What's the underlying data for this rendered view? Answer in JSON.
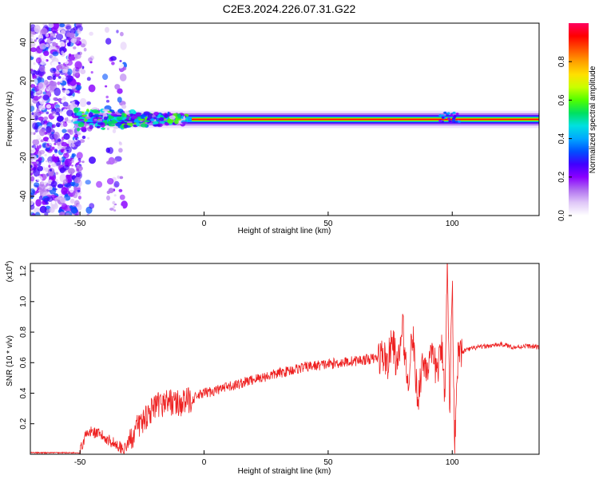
{
  "title": "C2E3.2024.226.07.31.G22",
  "chart_data": [
    {
      "type": "heatmap",
      "xlabel": "Height of straight line (km)",
      "ylabel": "Frequency (Hz)",
      "xlim": [
        -70,
        135
      ],
      "ylim": [
        -50,
        50
      ],
      "xticks": [
        "-50",
        "0",
        "50",
        "100"
      ],
      "yticks": [
        "-40",
        "-20",
        "0",
        "20",
        "40"
      ],
      "colorbar": {
        "label": "Normalized spectral amplitude",
        "range": [
          0.0,
          1.0
        ],
        "ticks": [
          "0.0",
          "0.2",
          "0.4",
          "0.6",
          "0.8"
        ],
        "colors": [
          "#ffffff",
          "#e0c8f8",
          "#b070f0",
          "#8a00ff",
          "#4000ff",
          "#0050ff",
          "#00a8ff",
          "#00e0e0",
          "#00e060",
          "#50ff00",
          "#c8ff00",
          "#ffe000",
          "#ffa000",
          "#ff5000",
          "#ff0000",
          "#ff0060"
        ]
      },
      "noise_region_x": [
        -70,
        -32
      ],
      "signal_band": {
        "start_x": -52,
        "center_freq": 0,
        "description_points_x": [
          -52,
          -30,
          -10,
          0,
          50,
          100,
          135
        ]
      }
    },
    {
      "type": "line",
      "xlabel": "Height of straight line (km)",
      "ylabel": "SNR (10 * v/v)",
      "y_multiplier": "(x10",
      "y_multiplier_exp": "4",
      "y_multiplier_close": ")",
      "xlim": [
        -70,
        135
      ],
      "ylim": [
        0,
        1.25
      ],
      "xticks": [
        "-50",
        "0",
        "50",
        "100"
      ],
      "yticks": [
        "0.2",
        "0.4",
        "0.6",
        "0.8",
        "1.0",
        "1.2"
      ],
      "series_color": "#ee2020",
      "x": [
        -70,
        -50,
        -48,
        -45,
        -40,
        -35,
        -32,
        -28,
        -22,
        -15,
        -10,
        -5,
        0,
        10,
        20,
        30,
        40,
        50,
        60,
        65,
        70,
        72,
        74,
        76,
        78,
        80,
        82,
        84,
        86,
        88,
        90,
        92,
        94,
        96,
        97,
        98,
        99,
        100,
        101,
        102,
        103,
        105,
        110,
        115,
        120,
        125,
        130,
        135
      ],
      "y": [
        0.01,
        0.01,
        0.12,
        0.15,
        0.11,
        0.06,
        0.03,
        0.15,
        0.28,
        0.35,
        0.33,
        0.36,
        0.4,
        0.44,
        0.49,
        0.53,
        0.57,
        0.59,
        0.61,
        0.62,
        0.63,
        0.65,
        0.6,
        0.75,
        0.55,
        0.85,
        0.45,
        0.8,
        0.35,
        0.6,
        0.58,
        0.62,
        0.55,
        0.7,
        0.4,
        1.22,
        0.3,
        1.15,
        0.05,
        0.6,
        0.65,
        0.68,
        0.7,
        0.71,
        0.72,
        0.7,
        0.71,
        0.7
      ]
    }
  ]
}
